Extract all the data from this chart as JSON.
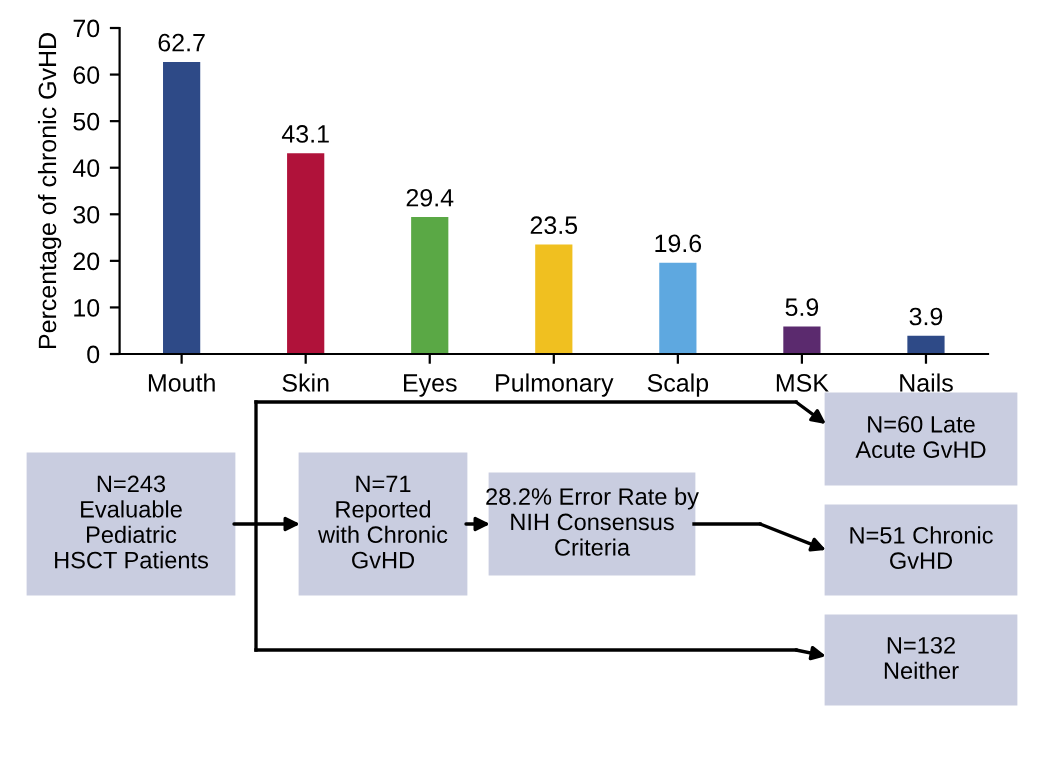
{
  "chart_data": {
    "type": "bar",
    "ylabel": "Percentage of chronic GvHD",
    "categories": [
      "Mouth",
      "Skin",
      "Eyes",
      "Pulmonary",
      "Scalp",
      "MSK",
      "Nails"
    ],
    "values": [
      62.7,
      43.1,
      29.4,
      23.5,
      19.6,
      5.9,
      3.9
    ],
    "colors": [
      "#2e4a87",
      "#b0123a",
      "#5aa845",
      "#f0c020",
      "#5ea8e0",
      "#5b2a6e",
      "#2e4a87"
    ],
    "ylim": [
      0,
      70
    ],
    "yticks": [
      0,
      10,
      20,
      30,
      40,
      50,
      60,
      70
    ],
    "grid": false,
    "data_labels": true,
    "annotations": [
      "N=243\nEvaluable\nPediatric\nHSCT Patients",
      "N=71\nReported\nwith Chronic\nGvHD",
      "28.2% Error Rate by\nNIH Consensus\nCriteria",
      "N=60 Late\nAcute GvHD",
      "N=51 Chronic\nGvHD",
      "N=132\nNeither"
    ]
  }
}
